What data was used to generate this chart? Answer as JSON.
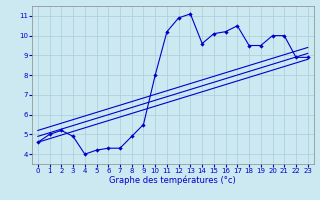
{
  "x": [
    0,
    1,
    2,
    3,
    4,
    5,
    6,
    7,
    8,
    9,
    10,
    11,
    12,
    13,
    14,
    15,
    16,
    17,
    18,
    19,
    20,
    21,
    22,
    23
  ],
  "y_main": [
    4.6,
    5.0,
    5.2,
    4.9,
    4.0,
    4.2,
    4.3,
    4.3,
    4.9,
    5.5,
    8.0,
    10.2,
    10.9,
    11.1,
    9.6,
    10.1,
    10.2,
    10.5,
    9.5,
    9.5,
    10.0,
    10.0,
    8.9,
    8.9
  ],
  "xlabel": "Graphe des températures (°c)",
  "xlim": [
    -0.5,
    23.5
  ],
  "ylim": [
    3.5,
    11.5
  ],
  "yticks": [
    4,
    5,
    6,
    7,
    8,
    9,
    10,
    11
  ],
  "xticks": [
    0,
    1,
    2,
    3,
    4,
    5,
    6,
    7,
    8,
    9,
    10,
    11,
    12,
    13,
    14,
    15,
    16,
    17,
    18,
    19,
    20,
    21,
    22,
    23
  ],
  "line_color": "#0000cc",
  "bg_color": "#cce8f0",
  "grid_color": "#aaccdd",
  "trend_lines": [
    {
      "x0": 0,
      "y0": 4.6,
      "x1": 23,
      "y1": 8.8
    },
    {
      "x0": 0,
      "y0": 4.9,
      "x1": 23,
      "y1": 9.1
    },
    {
      "x0": 0,
      "y0": 5.2,
      "x1": 23,
      "y1": 9.4
    }
  ]
}
